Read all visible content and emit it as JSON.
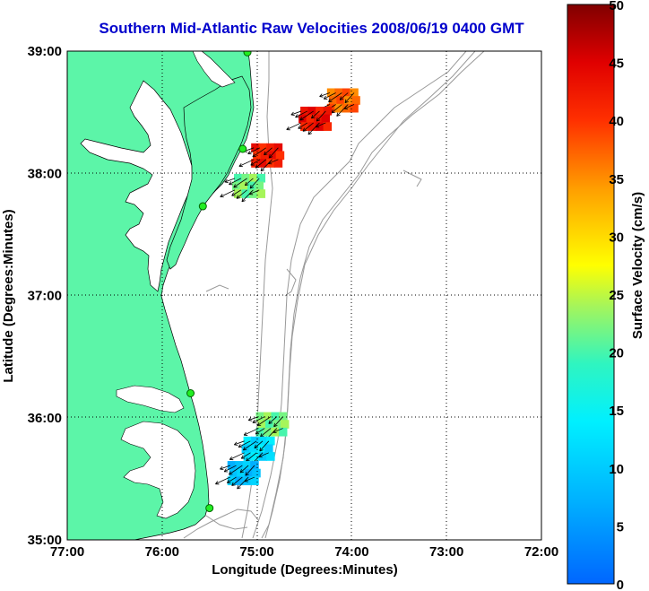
{
  "title": "Southern Mid-Atlantic Raw Velocities 2008/06/19 0400 GMT",
  "xlabel": "Longitude (Degrees:Minutes)",
  "ylabel": "Latitude (Degrees:Minutes)",
  "colorbar_label": "Surface Velocity (cm/s)",
  "x_ticks": [
    "77:00",
    "76:00",
    "75:00",
    "74:00",
    "73:00",
    "72:00"
  ],
  "y_ticks": [
    "39:00",
    "38:00",
    "37:00",
    "36:00",
    "35:00"
  ],
  "colorbar_ticks": [
    "0",
    "5",
    "10",
    "15",
    "20",
    "25",
    "30",
    "35",
    "40",
    "45",
    "50"
  ],
  "colors": {
    "land": "#5cf5a8",
    "title": "#0000cc",
    "contour": "#999999"
  },
  "map_data": {
    "lon_range": [
      -77,
      -72
    ],
    "lat_range": [
      35,
      39
    ],
    "colorbar_range": [
      0,
      50
    ],
    "patches": [
      {
        "name": "delaware-patch",
        "lon": -74.1,
        "lat": 38.6,
        "speed": 37
      },
      {
        "name": "delaware-patch-2",
        "lon": -74.4,
        "lat": 38.45,
        "speed": 43
      },
      {
        "name": "maryland-patch",
        "lon": -74.9,
        "lat": 38.15,
        "speed": 42
      },
      {
        "name": "virginia-patch",
        "lon": -75.1,
        "lat": 37.9,
        "speed": 22
      },
      {
        "name": "hatteras-north-patch",
        "lon": -74.85,
        "lat": 35.95,
        "speed": 22
      },
      {
        "name": "hatteras-patch",
        "lon": -75.0,
        "lat": 35.75,
        "speed": 12
      },
      {
        "name": "hatteras-south-patch",
        "lon": -75.15,
        "lat": 35.55,
        "speed": 9
      }
    ],
    "stations": [
      {
        "name": "station-1",
        "lon": -75.1,
        "lat": 38.99
      },
      {
        "name": "station-2",
        "lon": -75.15,
        "lat": 38.2
      },
      {
        "name": "station-3",
        "lon": -75.57,
        "lat": 37.73
      },
      {
        "name": "station-4",
        "lon": -75.7,
        "lat": 36.2
      },
      {
        "name": "station-5",
        "lon": -75.5,
        "lat": 35.26
      }
    ]
  }
}
